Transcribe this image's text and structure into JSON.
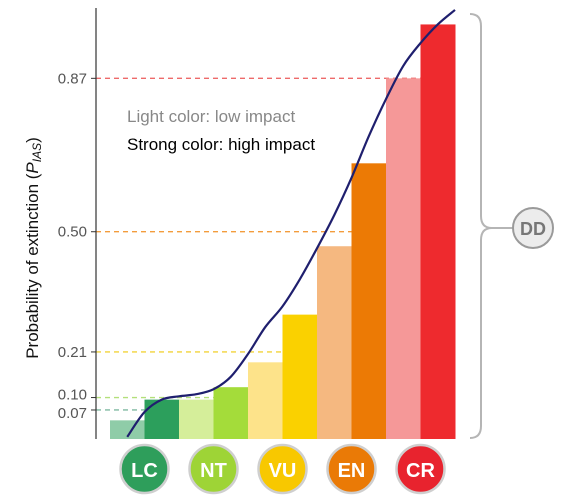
{
  "chart_data": {
    "type": "bar",
    "ylabel_main": "Probability of extinction (",
    "ylabel_italic": "P",
    "ylabel_sub": "IAS",
    "ylabel_close": ")",
    "ylim": [
      0,
      1.03
    ],
    "yticks": [
      {
        "value": 0.07,
        "label": "0.07",
        "color": "#7fb9a0"
      },
      {
        "value": 0.1,
        "label": "0.10",
        "color": "#b3e07a"
      },
      {
        "value": 0.21,
        "label": "0.21",
        "color": "#f2d43a"
      },
      {
        "value": 0.5,
        "label": "0.50",
        "color": "#f39c3c"
      },
      {
        "value": 0.87,
        "label": "0.87",
        "color": "#ee6a6a"
      }
    ],
    "notes": [
      {
        "text": "Light color: low impact",
        "color": "#888888"
      },
      {
        "text": "Strong color: high impact",
        "color": "#000000"
      }
    ],
    "categories": [
      "LC",
      "NT",
      "VU",
      "EN",
      "CR"
    ],
    "category_colors": [
      "#2e9e5b",
      "#9ed436",
      "#f8c800",
      "#ea7a06",
      "#e8232e"
    ],
    "bars": [
      {
        "category": "LC",
        "impact": "low",
        "value": 0.045,
        "color": "#8fcca8"
      },
      {
        "category": "LC",
        "impact": "high",
        "value": 0.095,
        "color": "#2c9f5c"
      },
      {
        "category": "NT",
        "impact": "low",
        "value": 0.095,
        "color": "#d5ee9a"
      },
      {
        "category": "NT",
        "impact": "high",
        "value": 0.125,
        "color": "#a4dc3a"
      },
      {
        "category": "VU",
        "impact": "low",
        "value": 0.185,
        "color": "#fde38a"
      },
      {
        "category": "VU",
        "impact": "high",
        "value": 0.3,
        "color": "#fad100"
      },
      {
        "category": "EN",
        "impact": "low",
        "value": 0.465,
        "color": "#f5b880"
      },
      {
        "category": "EN",
        "impact": "high",
        "value": 0.665,
        "color": "#ec7a05"
      },
      {
        "category": "CR",
        "impact": "low",
        "value": 0.87,
        "color": "#f59898"
      },
      {
        "category": "CR",
        "impact": "high",
        "value": 1.0,
        "color": "#ee2a2e"
      }
    ],
    "curve": {
      "color": "#1f1f6e",
      "points": [
        [
          0.5,
          0.005
        ],
        [
          1.0,
          0.065
        ],
        [
          1.5,
          0.095
        ],
        [
          2.0,
          0.103
        ],
        [
          2.5,
          0.108
        ],
        [
          3.0,
          0.12
        ],
        [
          3.5,
          0.15
        ],
        [
          4.0,
          0.205
        ],
        [
          4.5,
          0.27
        ],
        [
          5.0,
          0.32
        ],
        [
          5.5,
          0.385
        ],
        [
          6.0,
          0.46
        ],
        [
          6.5,
          0.54
        ],
        [
          7.0,
          0.63
        ],
        [
          7.5,
          0.73
        ],
        [
          8.0,
          0.82
        ],
        [
          8.5,
          0.9
        ],
        [
          9.0,
          0.955
        ],
        [
          9.5,
          1.0
        ],
        [
          10.0,
          1.035
        ]
      ]
    },
    "bracket_label": "DD",
    "grid": false
  }
}
